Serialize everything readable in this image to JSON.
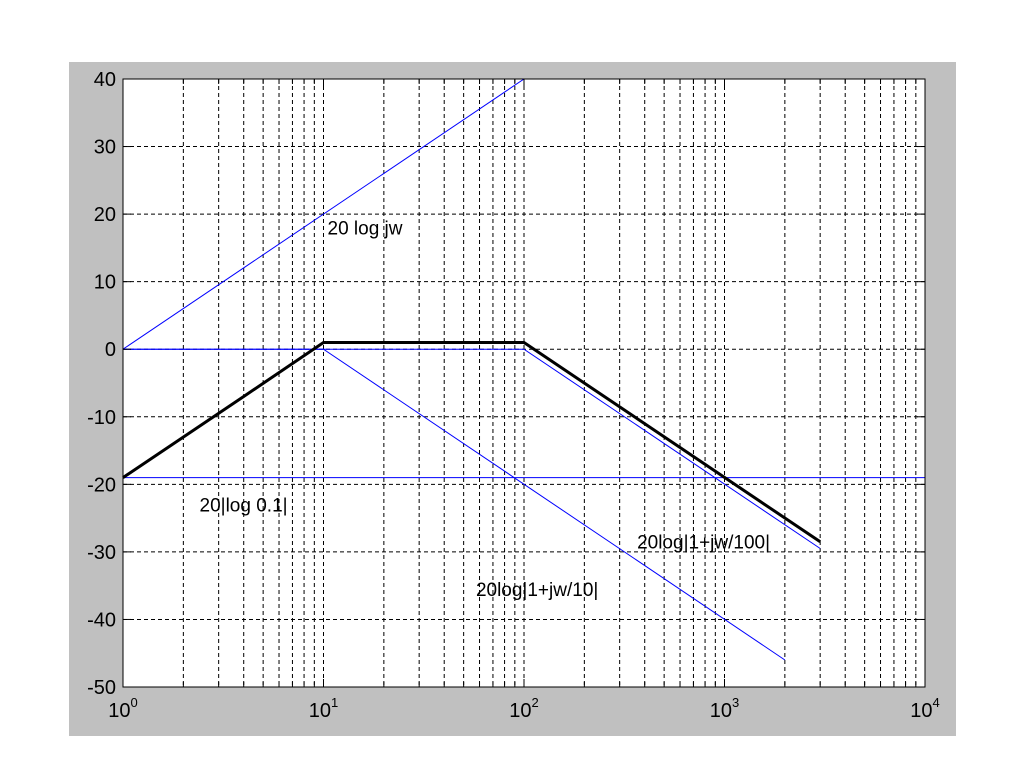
{
  "chart_data": {
    "type": "line",
    "x_scale": "log",
    "xlim": [
      1,
      10000
    ],
    "ylim": [
      -50,
      40
    ],
    "grid": true,
    "grid_style": "dashed",
    "x_ticks": [
      {
        "base": "10",
        "exp": "0",
        "value": 1
      },
      {
        "base": "10",
        "exp": "1",
        "value": 10
      },
      {
        "base": "10",
        "exp": "2",
        "value": 100
      },
      {
        "base": "10",
        "exp": "3",
        "value": 1000
      },
      {
        "base": "10",
        "exp": "4",
        "value": 10000
      }
    ],
    "y_ticks": [
      {
        "label": "40",
        "value": 40
      },
      {
        "label": "30",
        "value": 30
      },
      {
        "label": "20",
        "value": 20
      },
      {
        "label": "10",
        "value": 10
      },
      {
        "label": "0",
        "value": 0
      },
      {
        "label": "-10",
        "value": -10
      },
      {
        "label": "-20",
        "value": -20
      },
      {
        "label": "-30",
        "value": -30
      },
      {
        "label": "-40",
        "value": -40
      },
      {
        "label": "-50",
        "value": -50
      }
    ],
    "series": [
      {
        "color": "#0000ff",
        "width": 1,
        "x": [
          1,
          100
        ],
        "y": [
          0,
          40
        ]
      },
      {
        "color": "#0000ff",
        "width": 1,
        "x": [
          1,
          10,
          2000
        ],
        "y": [
          0,
          0,
          -46
        ]
      },
      {
        "color": "#0000ff",
        "width": 1,
        "x": [
          1,
          100,
          3000
        ],
        "y": [
          0,
          0,
          -29.5
        ]
      },
      {
        "color": "#0000ff",
        "width": 1,
        "x": [
          1,
          10000
        ],
        "y": [
          -19,
          -19
        ]
      },
      {
        "color": "#000000",
        "width": 3,
        "x": [
          1,
          4,
          10,
          100,
          3000
        ],
        "y": [
          -19,
          -7,
          1,
          1,
          -28.5
        ]
      }
    ],
    "annotations": [
      {
        "text": "20 log jw",
        "x": 10,
        "y": 17
      },
      {
        "text": "20|log 0.1|",
        "x": 2.3,
        "y": -24
      },
      {
        "text": "20log|1+jw/100|",
        "x": 350,
        "y": -29.5
      },
      {
        "text": "20log|1+jw/10|",
        "x": 55,
        "y": -36.5
      }
    ]
  }
}
